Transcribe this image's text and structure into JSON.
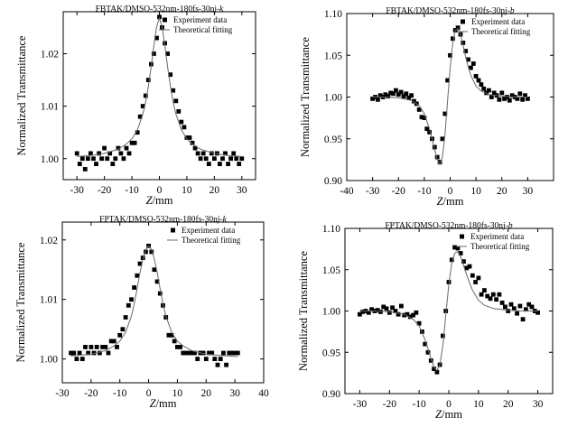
{
  "chart_data": [
    {
      "type": "scatter",
      "title": "FBTAK/DMSO-532nm-180fs-30nj-",
      "title_suffix": "k",
      "xlabel": "Z/mm",
      "ylabel": "Normalized Transmittance",
      "xlim": [
        -35,
        35
      ],
      "ylim": [
        0.996,
        1.028
      ],
      "xticks": [
        "-30",
        "-20",
        "-10",
        "0",
        "10",
        "20",
        "30"
      ],
      "yticks": [
        "1.00",
        "1.01",
        "1.02"
      ],
      "legend": [
        "Experiment data",
        "Theoretical fitting"
      ],
      "legend_position": "top-right",
      "series": [
        {
          "name": "Experiment data",
          "style": "marker",
          "x": [
            -30,
            -29,
            -28,
            -27,
            -26,
            -25,
            -24,
            -23,
            -22,
            -21,
            -20,
            -19,
            -18,
            -17,
            -16,
            -15,
            -14,
            -13,
            -12,
            -11,
            -10,
            -9,
            -8,
            -7,
            -6,
            -5,
            -4,
            -3,
            -2,
            -1,
            0,
            1,
            2,
            3,
            4,
            5,
            6,
            7,
            8,
            9,
            10,
            11,
            12,
            13,
            14,
            15,
            16,
            17,
            18,
            19,
            20,
            21,
            22,
            23,
            24,
            25,
            26,
            27,
            28,
            29,
            30
          ],
          "y": [
            1.001,
            0.999,
            1.0,
            0.998,
            1.0,
            1.001,
            1.0,
            0.999,
            1.001,
            1.0,
            1.002,
            1.0,
            1.001,
            0.999,
            1.0,
            1.002,
            1.001,
            1.0,
            1.002,
            1.001,
            1.003,
            1.003,
            1.005,
            1.008,
            1.01,
            1.012,
            1.015,
            1.018,
            1.02,
            1.023,
            1.027,
            1.025,
            1.022,
            1.02,
            1.016,
            1.013,
            1.011,
            1.009,
            1.007,
            1.006,
            1.004,
            1.004,
            1.003,
            1.002,
            1.001,
            1.0,
            1.001,
            1.0,
            0.999,
            1.001,
            1.0,
            1.001,
            0.999,
            1.0,
            1.001,
            0.999,
            1.0,
            1.001,
            1.0,
            0.999,
            1.0
          ]
        },
        {
          "name": "Theoretical fitting",
          "style": "line",
          "x": [
            -30,
            -25,
            -20,
            -15,
            -12,
            -10,
            -8,
            -6,
            -5,
            -4,
            -3,
            -2,
            -1,
            0,
            1,
            2,
            3,
            4,
            5,
            6,
            8,
            10,
            12,
            15,
            20,
            25,
            30
          ],
          "y": [
            1.0004,
            1.0006,
            1.001,
            1.0018,
            1.0028,
            1.0038,
            1.0055,
            1.0085,
            1.0108,
            1.0138,
            1.0175,
            1.0215,
            1.0252,
            1.0268,
            1.0252,
            1.0215,
            1.0175,
            1.0138,
            1.0108,
            1.0085,
            1.0055,
            1.0038,
            1.0028,
            1.0018,
            1.001,
            1.0006,
            1.0004
          ]
        }
      ]
    },
    {
      "type": "scatter",
      "title": "FBTAK/DMSO-532nm-180fs-30nj-",
      "title_suffix": "b",
      "xlabel": "Z/mm",
      "ylabel": "Normalized Transmittance",
      "xlim": [
        -40,
        40
      ],
      "ylim": [
        0.9,
        1.1
      ],
      "xticks": [
        "-40",
        "-30",
        "-20",
        "-10",
        "0",
        "10",
        "20",
        "30"
      ],
      "yticks": [
        "0.90",
        "0.95",
        "1.00",
        "1.05",
        "1.10"
      ],
      "legend": [
        "Experiment data",
        "Theoretical fitting"
      ],
      "legend_position": "top-right",
      "series": [
        {
          "name": "Experiment data",
          "style": "marker",
          "x": [
            -30,
            -29,
            -28,
            -27,
            -26,
            -25,
            -24,
            -23,
            -22,
            -21,
            -20,
            -19,
            -18,
            -17,
            -16,
            -15,
            -14,
            -13,
            -12,
            -11,
            -10,
            -9,
            -8,
            -7,
            -6,
            -5,
            -4,
            -3,
            -2,
            -1,
            0,
            1,
            2,
            3,
            4,
            5,
            6,
            7,
            8,
            9,
            10,
            11,
            12,
            13,
            14,
            15,
            16,
            17,
            18,
            19,
            20,
            21,
            22,
            23,
            24,
            25,
            26,
            27,
            28,
            29,
            30
          ],
          "y": [
            0.998,
            1.0,
            0.997,
            1.002,
            1.0,
            1.003,
            1.001,
            1.005,
            1.004,
            1.008,
            1.003,
            1.006,
            1.001,
            1.004,
            0.999,
            1.002,
            0.995,
            0.992,
            0.985,
            0.976,
            0.975,
            0.962,
            0.958,
            0.95,
            0.94,
            0.928,
            0.922,
            0.95,
            0.98,
            1.02,
            1.05,
            1.07,
            1.08,
            1.083,
            1.075,
            1.065,
            1.055,
            1.045,
            1.035,
            1.04,
            1.025,
            1.02,
            1.015,
            1.01,
            1.005,
            1.008,
            1.0,
            1.005,
            1.002,
            0.997,
            1.005,
            0.998,
            1.0,
            0.996,
            1.002,
            1.0,
            0.998,
            1.004,
            0.997,
            1.002,
            0.998
          ]
        },
        {
          "name": "Theoretical fitting",
          "style": "line",
          "x": [
            -30,
            -25,
            -20,
            -15,
            -12,
            -10,
            -8,
            -7,
            -6,
            -5,
            -4,
            -3,
            -2,
            -1,
            0,
            1,
            2,
            3,
            4,
            5,
            6,
            7,
            8,
            10,
            12,
            15,
            20,
            25,
            30
          ],
          "y": [
            1.0,
            1.0,
            0.999,
            0.996,
            0.99,
            0.98,
            0.962,
            0.95,
            0.937,
            0.925,
            0.919,
            0.928,
            0.955,
            0.995,
            1.035,
            1.065,
            1.08,
            1.082,
            1.075,
            1.062,
            1.048,
            1.036,
            1.026,
            1.013,
            1.007,
            1.003,
            1.001,
            1.0,
            1.0
          ]
        }
      ]
    },
    {
      "type": "scatter",
      "title": "FPTAK/DMSO-532nm-180fs-30nj-",
      "title_suffix": "k",
      "xlabel": "Z/mm",
      "ylabel": "Normalized Transmittance",
      "xlim": [
        -30,
        40
      ],
      "ylim": [
        0.996,
        1.023
      ],
      "xticks": [
        "-30",
        "-20",
        "-10",
        "0",
        "10",
        "20",
        "30",
        "40"
      ],
      "yticks": [
        "1.00",
        "1.01",
        "1.02"
      ],
      "legend": [
        "Experiment data",
        "Theoretical fitting"
      ],
      "legend_position": "top-right",
      "series": [
        {
          "name": "Experiment data",
          "style": "marker",
          "x": [
            -27,
            -26,
            -25,
            -24,
            -23,
            -22,
            -21,
            -20,
            -19,
            -18,
            -17,
            -16,
            -15,
            -14,
            -13,
            -12,
            -11,
            -10,
            -9,
            -8,
            -7,
            -6,
            -5,
            -4,
            -3,
            -2,
            -1,
            0,
            1,
            2,
            3,
            4,
            5,
            6,
            7,
            8,
            9,
            10,
            11,
            12,
            13,
            14,
            15,
            16,
            17,
            18,
            19,
            20,
            21,
            22,
            23,
            24,
            25,
            26,
            27,
            28,
            29,
            30,
            31
          ],
          "y": [
            1.001,
            1.001,
            1.0,
            1.001,
            1.0,
            1.002,
            1.001,
            1.002,
            1.001,
            1.002,
            1.001,
            1.002,
            1.002,
            1.001,
            1.003,
            1.003,
            1.002,
            1.004,
            1.005,
            1.007,
            1.009,
            1.01,
            1.012,
            1.014,
            1.016,
            1.017,
            1.018,
            1.019,
            1.018,
            1.015,
            1.013,
            1.011,
            1.009,
            1.007,
            1.004,
            1.004,
            1.003,
            1.002,
            1.002,
            1.001,
            1.001,
            1.001,
            1.001,
            1.001,
            1.0,
            1.001,
            1.001,
            1.0,
            1.001,
            1.001,
            1.0,
            0.999,
            1.0,
            1.001,
            0.999,
            1.001,
            1.001,
            1.001,
            1.001
          ]
        },
        {
          "name": "Theoretical fitting",
          "style": "line",
          "x": [
            -27,
            -20,
            -15,
            -12,
            -10,
            -8,
            -6,
            -5,
            -4,
            -3,
            -2,
            -1,
            0,
            1,
            2,
            3,
            4,
            5,
            6,
            8,
            10,
            12,
            15,
            20,
            25,
            31
          ],
          "y": [
            1.0005,
            1.0008,
            1.0014,
            1.0022,
            1.003,
            1.0045,
            1.0072,
            1.0092,
            1.0118,
            1.0145,
            1.0168,
            1.0184,
            1.019,
            1.0184,
            1.0168,
            1.0145,
            1.0118,
            1.0092,
            1.0072,
            1.0045,
            1.003,
            1.0022,
            1.0014,
            1.0008,
            1.0006,
            1.0004
          ]
        }
      ]
    },
    {
      "type": "scatter",
      "title": "FPTAK/DMSO-532nm-180fs-30nj-",
      "title_suffix": "b",
      "xlabel": "Z/mm",
      "ylabel": "Normalized Transmittance",
      "xlim": [
        -35,
        35
      ],
      "ylim": [
        0.9,
        1.1
      ],
      "xticks": [
        "-30",
        "-20",
        "-10",
        "0",
        "10",
        "20",
        "30"
      ],
      "yticks": [
        "0.90",
        "0.95",
        "1.00",
        "1.05",
        "1.10"
      ],
      "legend": [
        "Experiment data",
        "Theoretical fitting"
      ],
      "legend_position": "top-right",
      "series": [
        {
          "name": "Experiment data",
          "style": "marker",
          "x": [
            -30,
            -29,
            -28,
            -27,
            -26,
            -25,
            -24,
            -23,
            -22,
            -21,
            -20,
            -19,
            -18,
            -17,
            -16,
            -15,
            -14,
            -13,
            -12,
            -11,
            -10,
            -9,
            -8,
            -7,
            -6,
            -5,
            -4,
            -3,
            -2,
            -1,
            0,
            1,
            2,
            3,
            4,
            5,
            6,
            7,
            8,
            9,
            10,
            11,
            12,
            13,
            14,
            15,
            16,
            17,
            18,
            19,
            20,
            21,
            22,
            23,
            24,
            25,
            26,
            27,
            28,
            29,
            30
          ],
          "y": [
            0.996,
            0.999,
            1.0,
            0.998,
            1.002,
            1.0,
            1.001,
            0.999,
            1.005,
            1.003,
            0.998,
            1.004,
            1.0,
            0.996,
            1.006,
            0.995,
            0.996,
            0.993,
            0.995,
            0.998,
            0.985,
            0.975,
            0.96,
            0.95,
            0.94,
            0.93,
            0.926,
            0.935,
            0.97,
            1.0,
            1.035,
            1.062,
            1.077,
            1.076,
            1.07,
            1.06,
            1.052,
            1.054,
            1.043,
            1.035,
            1.04,
            1.02,
            1.025,
            1.018,
            1.015,
            1.02,
            1.014,
            1.02,
            1.01,
            1.005,
            1.0,
            1.008,
            1.003,
            0.997,
            1.006,
            0.99,
            1.002,
            1.008,
            1.005,
            1.0,
            0.998
          ]
        },
        {
          "name": "Theoretical fitting",
          "style": "line",
          "x": [
            -30,
            -25,
            -20,
            -15,
            -12,
            -10,
            -8,
            -7,
            -6,
            -5,
            -4,
            -3,
            -2,
            -1,
            0,
            1,
            2,
            3,
            4,
            5,
            6,
            7,
            8,
            10,
            12,
            15,
            20,
            25,
            30
          ],
          "y": [
            1.0,
            1.0,
            0.999,
            0.996,
            0.99,
            0.982,
            0.965,
            0.954,
            0.942,
            0.932,
            0.928,
            0.935,
            0.958,
            0.995,
            1.032,
            1.058,
            1.07,
            1.072,
            1.066,
            1.055,
            1.044,
            1.034,
            1.025,
            1.013,
            1.007,
            1.003,
            1.001,
            1.0,
            1.0
          ]
        }
      ]
    }
  ]
}
